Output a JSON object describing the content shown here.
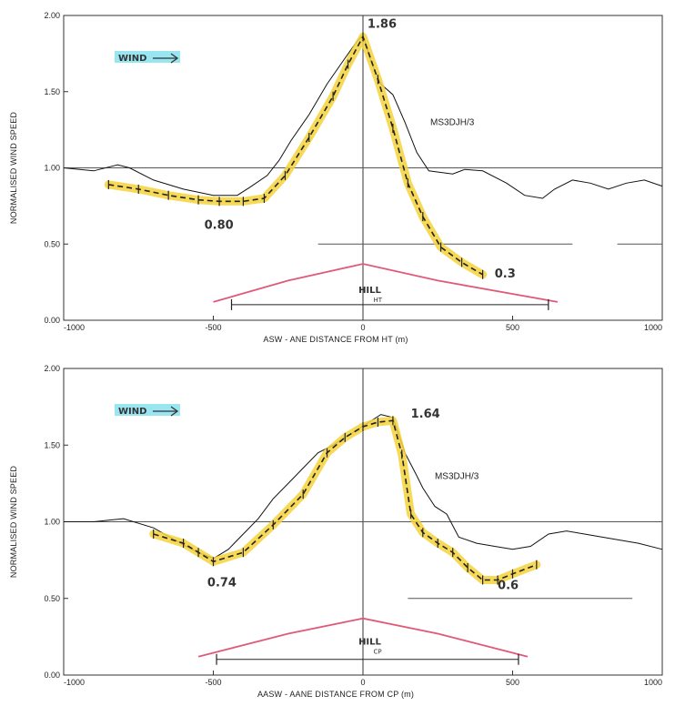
{
  "chart_data": [
    {
      "type": "line",
      "title": "",
      "xlabel": "ASW - ANE DISTANCE FROM HT (m)",
      "ylabel": "NORMALISED WIND SPEED",
      "xlim": [
        -1000,
        1000
      ],
      "ylim": [
        0,
        2
      ],
      "xticks": [
        "-1000",
        "-500",
        "0",
        "500",
        "1000"
      ],
      "yticks": [
        "0.00",
        "0.50",
        "1.00",
        "1.50",
        "2.00"
      ],
      "grid": false,
      "reference_lines": [
        {
          "y": 1.0,
          "x": [
            -1000,
            1000
          ]
        },
        {
          "y": 0.5,
          "x": [
            -150,
            700
          ]
        },
        {
          "y": 0.5,
          "x": [
            850,
            1000
          ]
        }
      ],
      "wind_label": "WIND",
      "series": [
        {
          "name": "MS3DJH/3",
          "style": "solid",
          "color": "#111111",
          "x": [
            -1000,
            -900,
            -820,
            -780,
            -700,
            -600,
            -500,
            -420,
            -380,
            -320,
            -280,
            -240,
            -180,
            -120,
            -60,
            -20,
            0,
            30,
            60,
            100,
            140,
            180,
            220,
            260,
            300,
            340,
            400,
            480,
            540,
            600,
            640,
            700,
            760,
            820,
            880,
            940,
            1000
          ],
          "y": [
            1.0,
            0.98,
            1.02,
            1.0,
            0.92,
            0.86,
            0.82,
            0.82,
            0.87,
            0.95,
            1.05,
            1.18,
            1.35,
            1.55,
            1.72,
            1.83,
            1.87,
            1.68,
            1.55,
            1.48,
            1.3,
            1.1,
            0.98,
            0.97,
            0.96,
            0.99,
            0.98,
            0.9,
            0.82,
            0.8,
            0.86,
            0.92,
            0.9,
            0.86,
            0.9,
            0.92,
            0.88
          ]
        },
        {
          "name": "",
          "style": "dashed-highlighted",
          "color": "#222222",
          "x": [
            -850,
            -750,
            -650,
            -550,
            -480,
            -400,
            -330,
            -260,
            -180,
            -100,
            -50,
            0,
            50,
            100,
            150,
            200,
            260,
            330,
            400
          ],
          "y": [
            0.89,
            0.86,
            0.82,
            0.79,
            0.78,
            0.78,
            0.8,
            0.95,
            1.2,
            1.47,
            1.68,
            1.86,
            1.58,
            1.26,
            0.9,
            0.68,
            0.48,
            0.38,
            0.3
          ]
        },
        {
          "name": "",
          "style": "solid",
          "color": "#e05a78",
          "x": [
            -500,
            -250,
            0,
            250,
            650
          ],
          "y": [
            0.12,
            0.26,
            0.37,
            0.26,
            0.12
          ]
        }
      ],
      "annotations": [
        {
          "text": "1.86",
          "x": 15,
          "y": 1.92
        },
        {
          "text": "MS3DJH/3",
          "x": 225,
          "y": 1.28
        },
        {
          "text": "0.80",
          "x": -530,
          "y": 0.6
        },
        {
          "text": "0.3",
          "x": 440,
          "y": 0.28
        },
        {
          "text": "HILL",
          "x": -15,
          "y": 0.18
        },
        {
          "text": "HT",
          "x": 35,
          "y": 0.12
        }
      ]
    },
    {
      "type": "line",
      "title": "",
      "xlabel": "AASW - AANE DISTANCE FROM CP (m)",
      "ylabel": "NORMALISED WIND SPEED",
      "xlim": [
        -1000,
        1000
      ],
      "ylim": [
        0,
        2
      ],
      "xticks": [
        "-1000",
        "-500",
        "0",
        "500",
        "1000"
      ],
      "yticks": [
        "0.00",
        "0.50",
        "1.00",
        "1.50",
        "2.00"
      ],
      "grid": false,
      "reference_lines": [
        {
          "y": 1.0,
          "x": [
            -1000,
            1000
          ]
        },
        {
          "y": 0.5,
          "x": [
            150,
            900
          ]
        }
      ],
      "wind_label": "WIND",
      "series": [
        {
          "name": "MS3DJH/3",
          "style": "solid",
          "color": "#111111",
          "x": [
            -1000,
            -900,
            -800,
            -700,
            -600,
            -550,
            -500,
            -450,
            -400,
            -350,
            -300,
            -250,
            -200,
            -150,
            -100,
            -60,
            -20,
            20,
            60,
            100,
            140,
            180,
            200,
            240,
            280,
            320,
            380,
            440,
            500,
            560,
            620,
            680,
            740,
            800,
            860,
            920,
            1000
          ],
          "y": [
            1.0,
            1.0,
            1.02,
            0.96,
            0.85,
            0.8,
            0.76,
            0.82,
            0.92,
            1.02,
            1.15,
            1.25,
            1.35,
            1.45,
            1.5,
            1.55,
            1.6,
            1.65,
            1.7,
            1.68,
            1.45,
            1.3,
            1.22,
            1.1,
            1.05,
            0.9,
            0.86,
            0.84,
            0.82,
            0.84,
            0.92,
            0.94,
            0.92,
            0.9,
            0.88,
            0.86,
            0.82
          ]
        },
        {
          "name": "",
          "style": "dashed-highlighted",
          "color": "#222222",
          "x": [
            -700,
            -600,
            -550,
            -500,
            -400,
            -300,
            -200,
            -120,
            -60,
            0,
            50,
            100,
            130,
            160,
            200,
            250,
            300,
            350,
            400,
            450,
            500,
            580
          ],
          "y": [
            0.92,
            0.86,
            0.8,
            0.74,
            0.8,
            0.98,
            1.18,
            1.45,
            1.55,
            1.62,
            1.65,
            1.66,
            1.44,
            1.05,
            0.93,
            0.86,
            0.8,
            0.7,
            0.62,
            0.62,
            0.66,
            0.72
          ]
        },
        {
          "name": "",
          "style": "solid",
          "color": "#e05a78",
          "x": [
            -550,
            -250,
            0,
            250,
            550
          ],
          "y": [
            0.12,
            0.27,
            0.37,
            0.27,
            0.12
          ]
        }
      ],
      "annotations": [
        {
          "text": "1.64",
          "x": 160,
          "y": 1.68
        },
        {
          "text": "MS3DJH/3",
          "x": 240,
          "y": 1.28
        },
        {
          "text": "0.74",
          "x": -520,
          "y": 0.58
        },
        {
          "text": "0.6",
          "x": 450,
          "y": 0.56
        },
        {
          "text": "HILL",
          "x": -15,
          "y": 0.2
        },
        {
          "text": "CP",
          "x": 35,
          "y": 0.14
        }
      ]
    }
  ]
}
